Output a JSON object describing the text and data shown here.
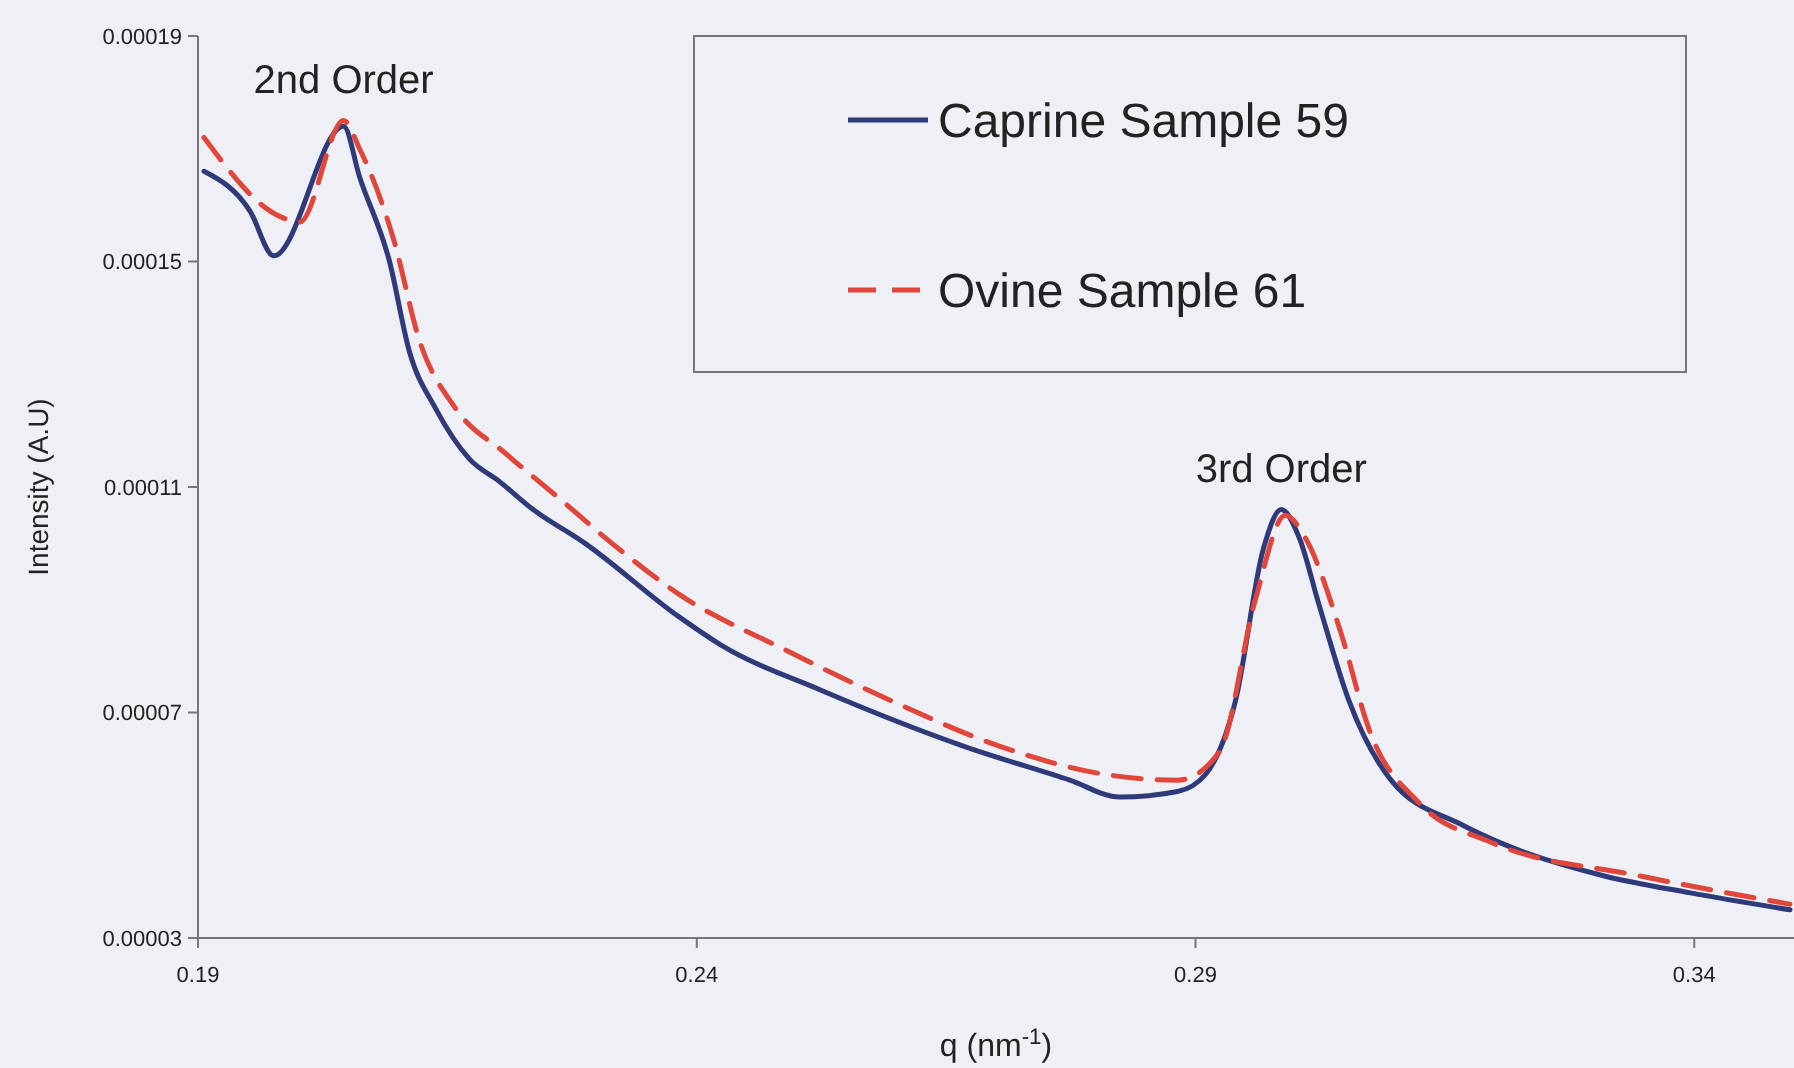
{
  "chart_data": {
    "type": "line",
    "xlabel": "q (nm$^{-1}$)",
    "ylabel": "Intensity (A.U)",
    "xlim": [
      0.19,
      0.35
    ],
    "xticks": [
      0.19,
      0.24,
      0.29,
      0.34
    ],
    "ylim": [
      3e-05,
      0.00019
    ],
    "yticks": [
      {
        "value": 3e-05,
        "label": "0.00003"
      },
      {
        "value": 7e-05,
        "label": "0.00007"
      },
      0.00011,
      0.00015,
      0.00019
    ],
    "grid": false,
    "legend": "top",
    "marker": "none",
    "annotations": [
      {
        "text": "2nd Order",
        "x": 0.2046,
        "y": 0.000175
      },
      {
        "text": "3rd Order",
        "x": 0.2986,
        "y": 0.000106
      }
    ],
    "series": [
      {
        "name": "Caprine Sample 59",
        "color": "#2e3a7a",
        "line_style": "solid",
        "x": [
          0.1906,
          0.1952,
          0.1976,
          0.2046,
          0.2062,
          0.2092,
          0.2112,
          0.2138,
          0.2172,
          0.2202,
          0.2236,
          0.2288,
          0.2382,
          0.2424,
          0.2524,
          0.2668,
          0.2774,
          0.2824,
          0.2882,
          0.291,
          0.294,
          0.2968,
          0.2986,
          0.3004,
          0.3024,
          0.3054,
          0.3096,
          0.3168,
          0.3204,
          0.331,
          0.3396,
          0.3496
        ],
        "values": [
          0.000166,
          0.000159,
          0.000151,
          0.000174,
          0.000165,
          0.00015,
          0.000134,
          0.000124,
          0.000115,
          0.000111,
          0.000106,
          0.0001,
          8.7e-05,
          8.2e-05,
          7.4e-05,
          6.4e-05,
          5.8e-05,
          5.5e-05,
          5.6e-05,
          5.9e-05,
          7.2e-05,
          9.9e-05,
          0.000106,
          0.000101,
          8.9e-05,
          7.2e-05,
          5.8e-05,
          5e-05,
          4.7e-05,
          4.1e-05,
          3.8e-05,
          3.5e-05
        ]
      },
      {
        "name": "Ovine Sample 61",
        "color": "#e0463a",
        "line_style": "dashed",
        "x": [
          0.1906,
          0.1982,
          0.2002,
          0.2046,
          0.2062,
          0.2096,
          0.2122,
          0.2158,
          0.2208,
          0.2262,
          0.2322,
          0.2382,
          0.249,
          0.2596,
          0.2704,
          0.281,
          0.2882,
          0.2924,
          0.296,
          0.299,
          0.301,
          0.3046,
          0.3074,
          0.3124,
          0.3196,
          0.3346,
          0.3496
        ],
        "values": [
          0.000172,
          0.000158,
          0.000157,
          0.000175,
          0.00017,
          0.000154,
          0.000136,
          0.000124,
          0.000116,
          0.000108,
          9.9e-05,
          9.1e-05,
          8.1e-05,
          7.2e-05,
          6.4e-05,
          5.9e-05,
          5.8e-05,
          6.3e-05,
          9e-05,
          0.000105,
          0.000101,
          8.4e-05,
          6.7e-05,
          5.4e-05,
          4.7e-05,
          4.1e-05,
          3.6e-05
        ]
      }
    ]
  }
}
